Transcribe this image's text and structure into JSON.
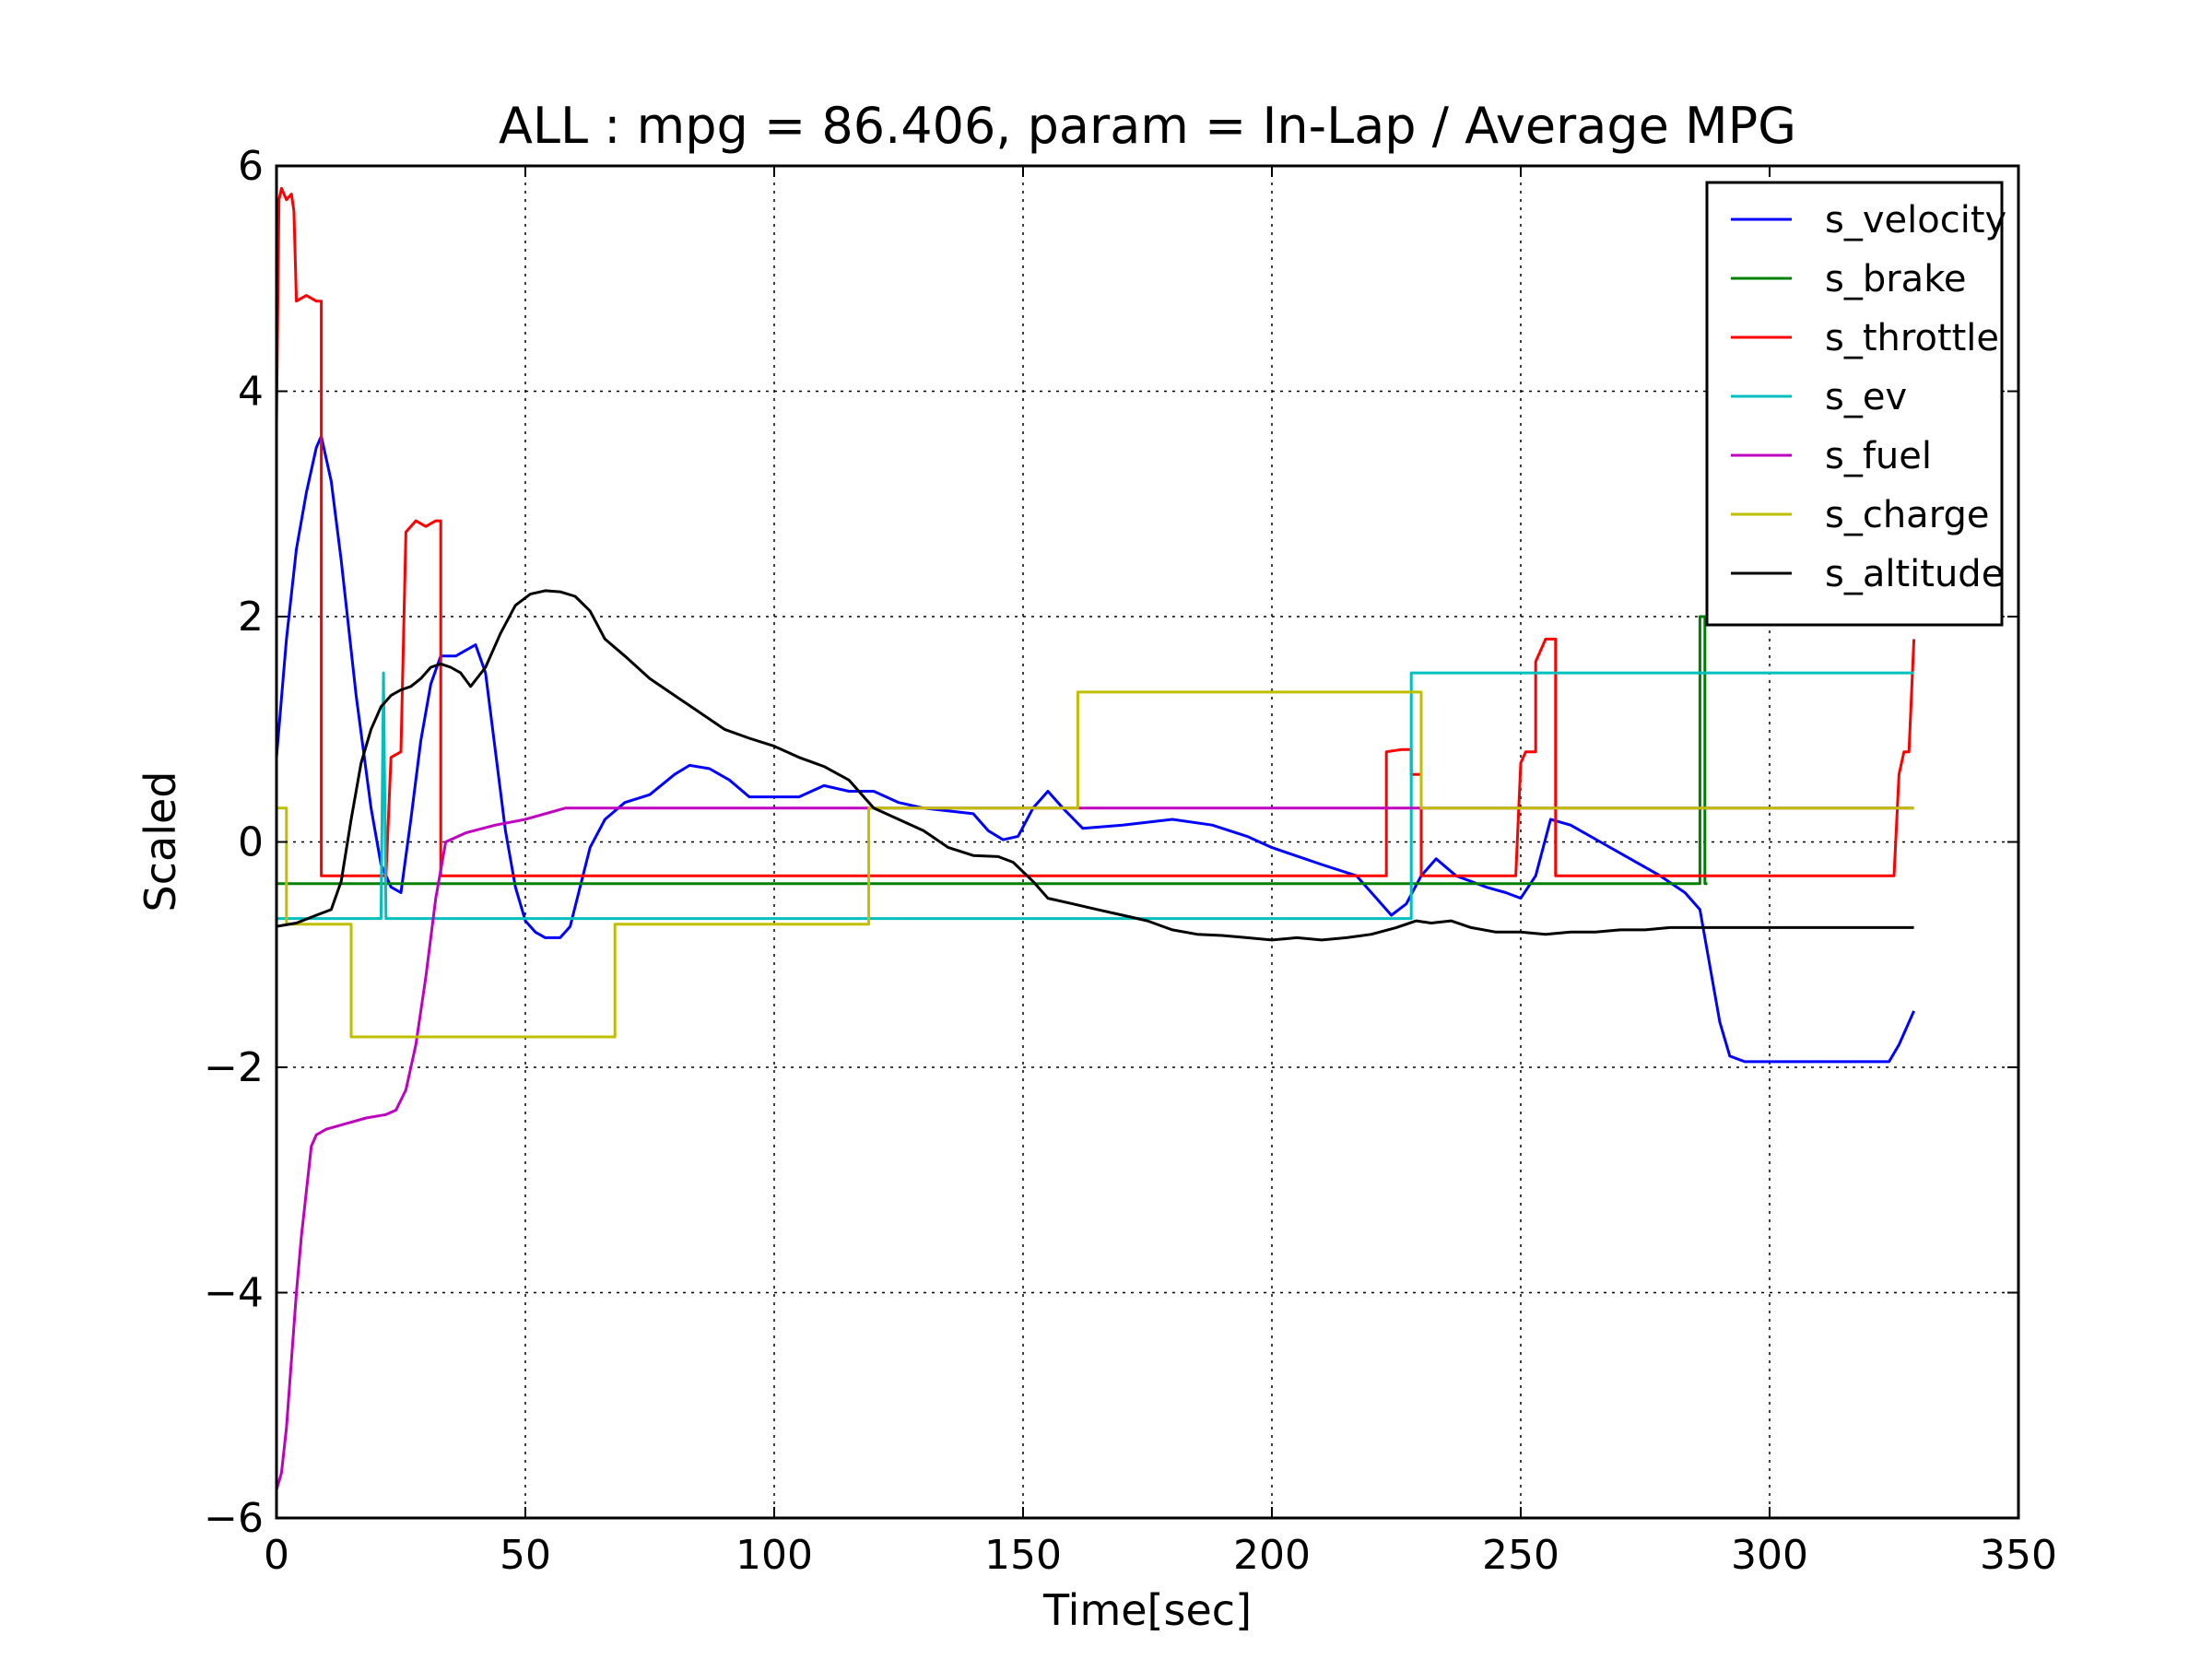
{
  "chart_data": {
    "type": "line",
    "title": "ALL : mpg = 86.406, param = In-Lap / Average MPG",
    "xlabel": "Time[sec]",
    "ylabel": "Scaled",
    "xlim": [
      0,
      350
    ],
    "ylim": [
      -6,
      6
    ],
    "x_ticks": [
      0,
      50,
      100,
      150,
      200,
      250,
      300,
      350
    ],
    "y_ticks": [
      -6,
      -4,
      -2,
      0,
      2,
      4,
      6
    ],
    "x_tick_labels": [
      "0",
      "50",
      "100",
      "150",
      "200",
      "250",
      "300",
      "350"
    ],
    "y_tick_labels": [
      "−6",
      "−4",
      "−2",
      "0",
      "2",
      "4",
      "6"
    ],
    "grid": true,
    "legend_position": "top-right",
    "series": [
      {
        "name": "s_velocity",
        "color": "#0000ff",
        "points": [
          [
            0,
            0.75
          ],
          [
            2,
            1.8
          ],
          [
            4,
            2.6
          ],
          [
            6,
            3.1
          ],
          [
            8,
            3.5
          ],
          [
            9,
            3.6
          ],
          [
            11,
            3.2
          ],
          [
            13,
            2.5
          ],
          [
            16,
            1.3
          ],
          [
            19,
            0.3
          ],
          [
            21,
            -0.2
          ],
          [
            23,
            -0.4
          ],
          [
            25,
            -0.45
          ],
          [
            27,
            0.2
          ],
          [
            29,
            0.9
          ],
          [
            31,
            1.4
          ],
          [
            33,
            1.65
          ],
          [
            36,
            1.65
          ],
          [
            38,
            1.7
          ],
          [
            40,
            1.75
          ],
          [
            42,
            1.5
          ],
          [
            44,
            0.8
          ],
          [
            46,
            0.1
          ],
          [
            48,
            -0.4
          ],
          [
            50,
            -0.7
          ],
          [
            52,
            -0.8
          ],
          [
            54,
            -0.85
          ],
          [
            57,
            -0.85
          ],
          [
            59,
            -0.75
          ],
          [
            61,
            -0.4
          ],
          [
            63,
            -0.05
          ],
          [
            66,
            0.2
          ],
          [
            70,
            0.35
          ],
          [
            75,
            0.42
          ],
          [
            80,
            0.6
          ],
          [
            83,
            0.68
          ],
          [
            87,
            0.65
          ],
          [
            91,
            0.55
          ],
          [
            95,
            0.4
          ],
          [
            105,
            0.4
          ],
          [
            110,
            0.5
          ],
          [
            115,
            0.45
          ],
          [
            120,
            0.45
          ],
          [
            125,
            0.35
          ],
          [
            130,
            0.3
          ],
          [
            140,
            0.25
          ],
          [
            143,
            0.1
          ],
          [
            146,
            0.02
          ],
          [
            149,
            0.05
          ],
          [
            152,
            0.3
          ],
          [
            155,
            0.45
          ],
          [
            158,
            0.3
          ],
          [
            162,
            0.12
          ],
          [
            170,
            0.15
          ],
          [
            180,
            0.2
          ],
          [
            188,
            0.15
          ],
          [
            195,
            0.05
          ],
          [
            200,
            -0.05
          ],
          [
            210,
            -0.2
          ],
          [
            217,
            -0.3
          ],
          [
            221,
            -0.5
          ],
          [
            224,
            -0.65
          ],
          [
            227,
            -0.55
          ],
          [
            230,
            -0.3
          ],
          [
            233,
            -0.15
          ],
          [
            237,
            -0.3
          ],
          [
            243,
            -0.4
          ],
          [
            247,
            -0.45
          ],
          [
            250,
            -0.5
          ],
          [
            253,
            -0.3
          ],
          [
            256,
            0.2
          ],
          [
            260,
            0.15
          ],
          [
            266,
            0.0
          ],
          [
            272,
            -0.15
          ],
          [
            278,
            -0.3
          ],
          [
            283,
            -0.45
          ],
          [
            286,
            -0.6
          ],
          [
            288,
            -1.1
          ],
          [
            290,
            -1.6
          ],
          [
            292,
            -1.9
          ],
          [
            295,
            -1.95
          ],
          [
            320,
            -1.95
          ],
          [
            324,
            -1.95
          ],
          [
            326,
            -1.8
          ],
          [
            328,
            -1.6
          ],
          [
            329,
            -1.5
          ]
        ]
      },
      {
        "name": "s_brake",
        "color": "#008000",
        "points": [
          [
            0,
            -0.37
          ],
          [
            286,
            -0.37
          ],
          [
            286,
            2.0
          ],
          [
            287,
            2.0
          ],
          [
            287,
            -0.37
          ],
          [
            287.5,
            -0.37
          ]
        ]
      },
      {
        "name": "s_throttle",
        "color": "#ff0000",
        "points": [
          [
            0,
            3.7
          ],
          [
            0.5,
            5.7
          ],
          [
            1,
            5.8
          ],
          [
            2,
            5.7
          ],
          [
            3,
            5.75
          ],
          [
            3.5,
            5.6
          ],
          [
            4,
            4.8
          ],
          [
            6,
            4.85
          ],
          [
            8,
            4.8
          ],
          [
            9,
            4.8
          ],
          [
            9,
            -0.3
          ],
          [
            22,
            -0.3
          ],
          [
            23,
            0.75
          ],
          [
            25,
            0.8
          ],
          [
            26,
            2.75
          ],
          [
            28,
            2.85
          ],
          [
            30,
            2.8
          ],
          [
            32,
            2.85
          ],
          [
            33,
            2.85
          ],
          [
            33,
            -0.3
          ],
          [
            223,
            -0.3
          ],
          [
            223,
            0.8
          ],
          [
            226,
            0.82
          ],
          [
            228,
            0.82
          ],
          [
            228,
            0.6
          ],
          [
            230,
            0.6
          ],
          [
            230,
            -0.3
          ],
          [
            249,
            -0.3
          ],
          [
            250,
            0.7
          ],
          [
            251,
            0.8
          ],
          [
            253,
            0.8
          ],
          [
            253,
            1.6
          ],
          [
            255,
            1.8
          ],
          [
            257,
            1.8
          ],
          [
            257,
            -0.3
          ],
          [
            325,
            -0.3
          ],
          [
            326,
            0.6
          ],
          [
            327,
            0.8
          ],
          [
            328,
            0.8
          ],
          [
            329,
            1.8
          ]
        ]
      },
      {
        "name": "s_ev",
        "color": "#00bfbf",
        "points": [
          [
            0,
            -0.68
          ],
          [
            21,
            -0.68
          ],
          [
            21.5,
            1.5
          ],
          [
            22,
            -0.68
          ],
          [
            228,
            -0.68
          ],
          [
            228,
            1.5
          ],
          [
            329,
            1.5
          ]
        ]
      },
      {
        "name": "s_fuel",
        "color": "#bf00bf",
        "points": [
          [
            0,
            -5.75
          ],
          [
            1,
            -5.6
          ],
          [
            2,
            -5.2
          ],
          [
            3,
            -4.6
          ],
          [
            4,
            -4.0
          ],
          [
            5,
            -3.5
          ],
          [
            6,
            -3.1
          ],
          [
            7,
            -2.7
          ],
          [
            8,
            -2.6
          ],
          [
            10,
            -2.55
          ],
          [
            14,
            -2.5
          ],
          [
            18,
            -2.45
          ],
          [
            22,
            -2.42
          ],
          [
            24,
            -2.38
          ],
          [
            26,
            -2.2
          ],
          [
            28,
            -1.8
          ],
          [
            30,
            -1.2
          ],
          [
            32,
            -0.5
          ],
          [
            34,
            0.0
          ],
          [
            38,
            0.08
          ],
          [
            44,
            0.15
          ],
          [
            50,
            0.2
          ],
          [
            58,
            0.3
          ],
          [
            60,
            0.3
          ],
          [
            329,
            0.3
          ]
        ]
      },
      {
        "name": "s_charge",
        "color": "#bfbf00",
        "points": [
          [
            0,
            0.3
          ],
          [
            2,
            0.3
          ],
          [
            2,
            -0.73
          ],
          [
            15,
            -0.73
          ],
          [
            15,
            -1.73
          ],
          [
            68,
            -1.73
          ],
          [
            68,
            -0.73
          ],
          [
            119,
            -0.73
          ],
          [
            119,
            0.3
          ],
          [
            161,
            0.3
          ],
          [
            161,
            1.33
          ],
          [
            230,
            1.33
          ],
          [
            230,
            0.3
          ],
          [
            329,
            0.3
          ]
        ]
      },
      {
        "name": "s_altitude",
        "color": "#000000",
        "points": [
          [
            0,
            -0.75
          ],
          [
            4,
            -0.72
          ],
          [
            8,
            -0.65
          ],
          [
            11,
            -0.6
          ],
          [
            13,
            -0.35
          ],
          [
            15,
            0.2
          ],
          [
            17,
            0.7
          ],
          [
            19,
            1.0
          ],
          [
            21,
            1.2
          ],
          [
            23,
            1.3
          ],
          [
            25,
            1.35
          ],
          [
            27,
            1.38
          ],
          [
            29,
            1.45
          ],
          [
            31,
            1.55
          ],
          [
            33,
            1.58
          ],
          [
            35,
            1.55
          ],
          [
            37,
            1.5
          ],
          [
            39,
            1.38
          ],
          [
            42,
            1.55
          ],
          [
            45,
            1.85
          ],
          [
            48,
            2.1
          ],
          [
            51,
            2.2
          ],
          [
            54,
            2.23
          ],
          [
            57,
            2.22
          ],
          [
            60,
            2.18
          ],
          [
            63,
            2.05
          ],
          [
            66,
            1.8
          ],
          [
            70,
            1.65
          ],
          [
            75,
            1.45
          ],
          [
            80,
            1.3
          ],
          [
            85,
            1.15
          ],
          [
            90,
            1.0
          ],
          [
            95,
            0.92
          ],
          [
            100,
            0.85
          ],
          [
            105,
            0.75
          ],
          [
            110,
            0.67
          ],
          [
            115,
            0.55
          ],
          [
            120,
            0.3
          ],
          [
            125,
            0.2
          ],
          [
            130,
            0.1
          ],
          [
            135,
            -0.05
          ],
          [
            140,
            -0.12
          ],
          [
            145,
            -0.13
          ],
          [
            148,
            -0.18
          ],
          [
            152,
            -0.35
          ],
          [
            155,
            -0.5
          ],
          [
            160,
            -0.55
          ],
          [
            165,
            -0.6
          ],
          [
            170,
            -0.65
          ],
          [
            175,
            -0.7
          ],
          [
            180,
            -0.78
          ],
          [
            185,
            -0.82
          ],
          [
            190,
            -0.83
          ],
          [
            195,
            -0.85
          ],
          [
            200,
            -0.87
          ],
          [
            205,
            -0.85
          ],
          [
            210,
            -0.87
          ],
          [
            215,
            -0.85
          ],
          [
            220,
            -0.82
          ],
          [
            225,
            -0.76
          ],
          [
            229,
            -0.7
          ],
          [
            232,
            -0.72
          ],
          [
            236,
            -0.7
          ],
          [
            240,
            -0.76
          ],
          [
            245,
            -0.8
          ],
          [
            250,
            -0.8
          ],
          [
            255,
            -0.82
          ],
          [
            260,
            -0.8
          ],
          [
            265,
            -0.8
          ],
          [
            270,
            -0.78
          ],
          [
            275,
            -0.78
          ],
          [
            280,
            -0.76
          ],
          [
            285,
            -0.76
          ],
          [
            290,
            -0.76
          ],
          [
            300,
            -0.76
          ],
          [
            329,
            -0.76
          ]
        ]
      }
    ]
  }
}
